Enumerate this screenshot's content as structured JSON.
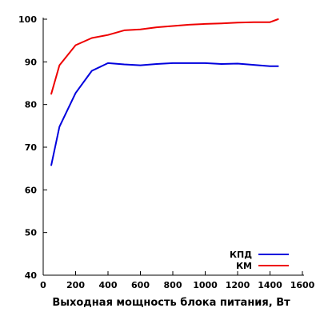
{
  "chart_data": {
    "type": "line",
    "title": "",
    "xlabel": "Выходная мощность блока питания, Вт",
    "ylabel": "",
    "xlim": [
      0,
      1600
    ],
    "ylim": [
      40,
      100
    ],
    "xticks": [
      0,
      200,
      400,
      600,
      800,
      1000,
      1200,
      1400,
      1600
    ],
    "yticks": [
      40,
      50,
      60,
      70,
      80,
      90,
      100
    ],
    "grid": false,
    "legend_position": "bottom-right",
    "series": [
      {
        "name": "КПД",
        "color": "#0000dd",
        "x": [
          50,
          100,
          200,
          300,
          400,
          500,
          600,
          700,
          800,
          900,
          1000,
          1100,
          1200,
          1300,
          1400,
          1450
        ],
        "y": [
          65.8,
          74.8,
          82.7,
          87.9,
          89.7,
          89.4,
          89.2,
          89.5,
          89.7,
          89.7,
          89.7,
          89.5,
          89.6,
          89.3,
          89.0,
          89.0
        ]
      },
      {
        "name": "КМ",
        "color": "#ee0000",
        "x": [
          50,
          100,
          200,
          300,
          400,
          500,
          600,
          700,
          800,
          900,
          1000,
          1100,
          1200,
          1300,
          1400,
          1450
        ],
        "y": [
          82.5,
          89.2,
          93.9,
          95.6,
          96.3,
          97.4,
          97.6,
          98.1,
          98.4,
          98.7,
          98.9,
          99.0,
          99.2,
          99.3,
          99.3,
          100.0
        ]
      }
    ]
  }
}
